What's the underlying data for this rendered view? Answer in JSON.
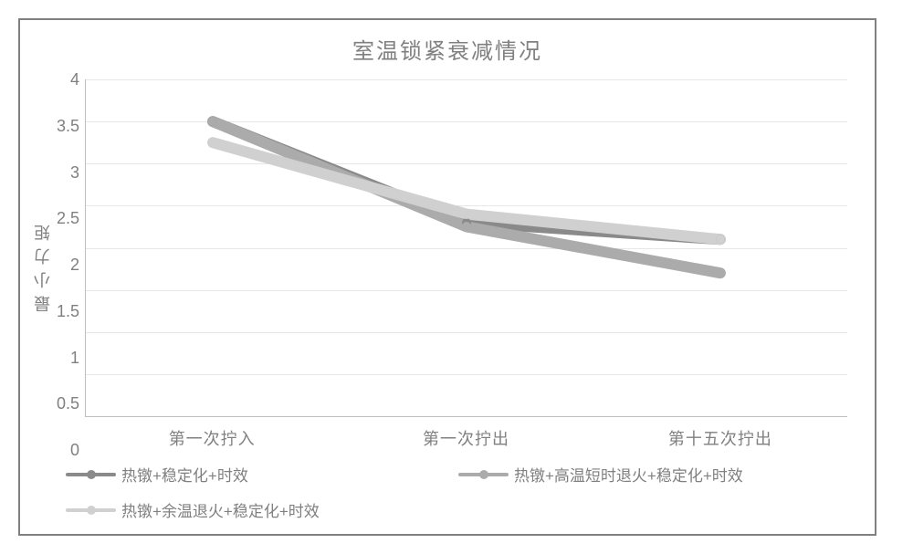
{
  "chart": {
    "type": "line",
    "title": "室温锁紧衰减情况",
    "title_fontsize": 24,
    "title_color": "#808080",
    "background_color": "#ffffff",
    "border_color": "#808080",
    "ylabel": "最小力矩",
    "label_fontsize": 18,
    "label_color": "#808080",
    "grid_color": "#e6e6e6",
    "axis_color": "#bfbfbf",
    "xlim": [
      0,
      2
    ],
    "ylim": [
      0,
      4
    ],
    "ytick_step": 0.5,
    "yticks": [
      "4",
      "3.5",
      "3",
      "2.5",
      "2",
      "1.5",
      "1",
      "0.5",
      "0"
    ],
    "yticks_num": [
      4,
      3.5,
      3,
      2.5,
      2,
      1.5,
      1,
      0.5,
      0
    ],
    "categories": [
      "第一次拧入",
      "第一次拧出",
      "第十五次拧出"
    ],
    "x_positions_pct": [
      16.6667,
      50,
      83.3333
    ],
    "line_width": 4,
    "marker_size": 10,
    "marker_style": "circle",
    "series": [
      {
        "name": "热镦+稳定化+时效",
        "color": "#8a8a8a",
        "values": [
          3.5,
          2.3,
          2.1
        ]
      },
      {
        "name": "热镦+高温短时退火+稳定化+时效",
        "color": "#ababab",
        "values": [
          3.5,
          2.25,
          1.7
        ]
      },
      {
        "name": "热镦+余温退火+稳定化+时效",
        "color": "#d0d0d0",
        "values": [
          3.25,
          2.4,
          2.1
        ]
      }
    ]
  }
}
